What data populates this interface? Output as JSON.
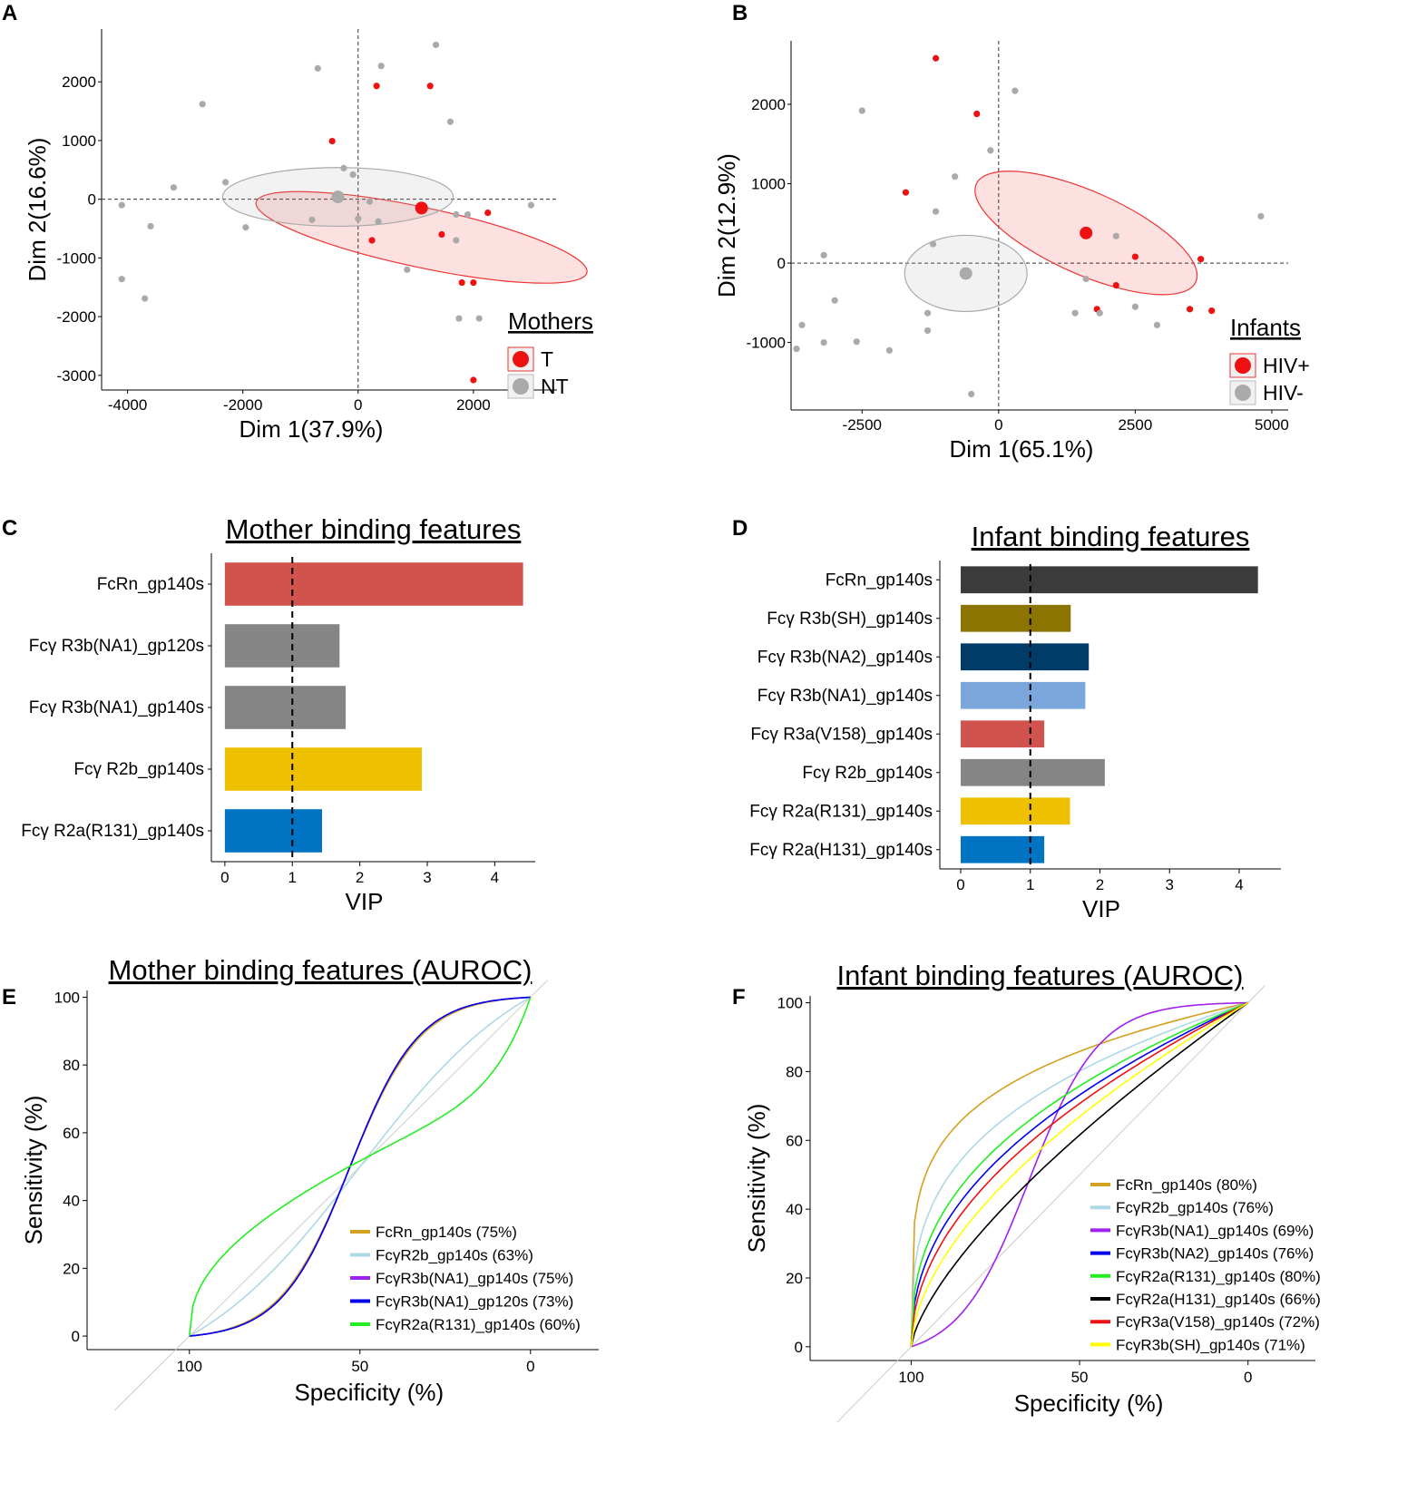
{
  "panels": {
    "A": {
      "letter": "A"
    },
    "B": {
      "letter": "B"
    },
    "C": {
      "letter": "C"
    },
    "D": {
      "letter": "D"
    },
    "E": {
      "letter": "E"
    },
    "F": {
      "letter": "F"
    }
  },
  "chart_data": [
    {
      "id": "A",
      "type": "scatter",
      "xlabel": "Dim 1(37.9%)",
      "ylabel": "Dim 2(16.6%)",
      "xlim": [
        -4450,
        3450
      ],
      "ylim": [
        -3250,
        2900
      ],
      "xticks": [
        -4000,
        -2000,
        0,
        2000
      ],
      "xtick_labels": [
        "-4000",
        "-2000",
        "0",
        "2000"
      ],
      "yticks": [
        2000,
        1000,
        0,
        -1000,
        -2000,
        -3000
      ],
      "ytick_labels": [
        "2000",
        "1000",
        "0",
        "-1000",
        "-2000",
        "-3000"
      ],
      "legend": {
        "title": "Mothers",
        "entries": [
          {
            "label": "T",
            "color": "#ee1111"
          },
          {
            "label": "NT",
            "color": "#aaaaaa"
          }
        ]
      },
      "series": [
        {
          "name": "T",
          "color": "#ee1111",
          "x": [
            320,
            1250,
            -450,
            240,
            1450,
            1800,
            2250,
            2000,
            2000
          ],
          "y": [
            1930,
            1930,
            990,
            -700,
            -600,
            -1420,
            -230,
            -3080,
            -1420
          ]
        },
        {
          "name": "NT",
          "color": "#aaaaaa",
          "x": [
            -4100,
            -4100,
            -3600,
            -3700,
            -3200,
            -2700,
            -2300,
            -1950,
            -700,
            400,
            200,
            -250,
            350,
            -800,
            0,
            -90,
            850,
            1350,
            1600,
            1700,
            1900,
            1700,
            1750,
            2100,
            3000
          ],
          "y": [
            -100,
            -1360,
            -460,
            -1690,
            200,
            1620,
            290,
            -480,
            2230,
            2270,
            -40,
            530,
            -380,
            -350,
            -330,
            420,
            -1200,
            2630,
            1320,
            -260,
            -260,
            -700,
            -2030,
            -2030,
            -100
          ]
        }
      ],
      "centroids": [
        {
          "name": "T",
          "x": 1100,
          "y": -150
        },
        {
          "name": "NT",
          "x": -350,
          "y": 40
        }
      ]
    },
    {
      "id": "B",
      "type": "scatter",
      "xlabel": "Dim 1(65.1%)",
      "ylabel": "Dim 2(12.9%)",
      "xlim": [
        -3800,
        5300
      ],
      "ylim": [
        -1850,
        2800
      ],
      "xticks": [
        -2500,
        0,
        2500,
        5000
      ],
      "xtick_labels": [
        "-2500",
        "0",
        "2500",
        "5000"
      ],
      "yticks": [
        2000,
        1000,
        0,
        -1000
      ],
      "ytick_labels": [
        "2000",
        "1000",
        "0",
        "-1000"
      ],
      "legend": {
        "title": "Infants",
        "entries": [
          {
            "label": "HIV+",
            "color": "#ee1111"
          },
          {
            "label": "HIV-",
            "color": "#aaaaaa"
          }
        ]
      },
      "series": [
        {
          "name": "HIV+",
          "color": "#ee1111",
          "x": [
            -1150,
            -400,
            -1700,
            2500,
            2150,
            1800,
            3700,
            3500,
            3900
          ],
          "y": [
            2580,
            1880,
            890,
            80,
            -280,
            -580,
            50,
            -580,
            -600
          ]
        },
        {
          "name": "HIV-",
          "color": "#aaaaaa",
          "x": [
            300,
            -2500,
            -150,
            -800,
            -1150,
            -1200,
            -3200,
            -3600,
            -3000,
            -3700,
            -3200,
            -2600,
            -2000,
            -1300,
            -1300,
            -500,
            1600,
            1400,
            1850,
            2150,
            2900,
            2500,
            4800
          ],
          "y": [
            2170,
            1920,
            1420,
            1090,
            650,
            240,
            100,
            -780,
            -470,
            -1080,
            -1000,
            -990,
            -1100,
            -630,
            -850,
            -1650,
            -200,
            -630,
            -630,
            340,
            -780,
            -550,
            590
          ]
        }
      ],
      "centroids": [
        {
          "name": "HIV+",
          "x": 1600,
          "y": 380
        },
        {
          "name": "HIV-",
          "x": -600,
          "y": -130
        }
      ]
    },
    {
      "id": "C",
      "type": "bar",
      "orientation": "horizontal",
      "title": "Mother binding features",
      "xlabel": "VIP",
      "xlim": [
        -0.2,
        4.6
      ],
      "xticks": [
        0,
        1,
        2,
        3,
        4
      ],
      "threshold": 1,
      "categories": [
        "FcRn_gp140s",
        "Fcγ R3b(NA1)_gp120s",
        "Fcγ R3b(NA1)_gp140s",
        "Fcγ R2b_gp140s",
        "Fcγ R2a(R131)_gp140s"
      ],
      "values": [
        4.42,
        1.7,
        1.79,
        2.92,
        1.44
      ],
      "colors": [
        "#d0544d",
        "#858585",
        "#858585",
        "#efc000",
        "#0073c2"
      ]
    },
    {
      "id": "D",
      "type": "bar",
      "orientation": "horizontal",
      "title": "Infant binding features",
      "xlabel": "VIP",
      "xlim": [
        -0.3,
        4.6
      ],
      "xticks": [
        0,
        1,
        2,
        3,
        4
      ],
      "threshold": 1,
      "categories": [
        "FcRn_gp140s",
        "Fcγ R3b(SH)_gp140s",
        "Fcγ R3b(NA2)_gp140s",
        "Fcγ R3b(NA1)_gp140s",
        "Fcγ R3a(V158)_gp140s",
        "Fcγ R2b_gp140s",
        "Fcγ R2a(R131)_gp140s",
        "Fcγ R2a(H131)_gp140s"
      ],
      "values": [
        4.27,
        1.58,
        1.84,
        1.79,
        1.2,
        2.07,
        1.57,
        1.2
      ],
      "colors": [
        "#3b3b3b",
        "#8b7500",
        "#003c67",
        "#7aa6dc",
        "#d0544d",
        "#858585",
        "#efc000",
        "#0073c2"
      ]
    },
    {
      "id": "E",
      "type": "line",
      "title": "Mother binding features (AUROC)",
      "xlabel": "Specificity (%)",
      "ylabel": "Sensitivity (%)",
      "xlim": [
        130,
        -20
      ],
      "ylim": [
        -4,
        102
      ],
      "xticks": [
        100,
        50,
        0
      ],
      "yticks": [
        0,
        20,
        40,
        60,
        80,
        100
      ],
      "series": [
        {
          "name": "FcRn_gp140s (75%)",
          "color": "#d4a020",
          "kind": "s",
          "k": 3.2,
          "c": 0.47,
          "bend": 0.6
        },
        {
          "name": "FcγR2b_gp140s (63%)",
          "color": "#add8e6",
          "kind": "s",
          "k": 1.3,
          "c": 0.5,
          "bend": 0.5
        },
        {
          "name": "FcγR3b(NA1)_gp140s (75%)",
          "color": "#a020f0",
          "kind": "s",
          "k": 3.3,
          "c": 0.47,
          "bend": 0.6
        },
        {
          "name": "FcγR3b(NA1)_gp120s (73%)",
          "color": "#0000ee",
          "kind": "s",
          "k": 3.3,
          "c": 0.47,
          "bend": 0.6
        },
        {
          "name": "FcγR2a(R131)_gp140s (60%)",
          "color": "#22ee22",
          "kind": "wave"
        }
      ]
    },
    {
      "id": "F",
      "type": "line",
      "title": "Infant binding features (AUROC)",
      "xlabel": "Specificity (%)",
      "ylabel": "Sensitivity (%)",
      "xlim": [
        130,
        -20
      ],
      "ylim": [
        -4,
        102
      ],
      "xticks": [
        100,
        50,
        0
      ],
      "yticks": [
        0,
        20,
        40,
        60,
        80,
        100
      ],
      "series": [
        {
          "name": "FcRn_gp140s (80%)",
          "color": "#d4a020",
          "kind": "concave",
          "p": 0.22
        },
        {
          "name": "FcγR2b_gp140s (76%)",
          "color": "#add8e6",
          "kind": "concave",
          "p": 0.32
        },
        {
          "name": "FcγR3b(NA1)_gp140s (69%)",
          "color": "#a020f0",
          "kind": "s",
          "k": 3.2,
          "c": 0.35,
          "bend": 0.5
        },
        {
          "name": "FcγR3b(NA2)_gp140s (76%)",
          "color": "#0000ee",
          "kind": "concave",
          "p": 0.45
        },
        {
          "name": "FcγR2a(R131)_gp140s (80%)",
          "color": "#22ee22",
          "kind": "concave",
          "p": 0.4
        },
        {
          "name": "FcγR2a(H131)_gp140s (66%)",
          "color": "#000000",
          "kind": "concave",
          "p": 0.7
        },
        {
          "name": "FcγR3a(V158)_gp140s (72%)",
          "color": "#ee1111",
          "kind": "concave",
          "p": 0.5
        },
        {
          "name": "FcγR3b(SH)_gp140s (71%)",
          "color": "#ffff00",
          "kind": "concave",
          "p": 0.58
        }
      ]
    }
  ]
}
